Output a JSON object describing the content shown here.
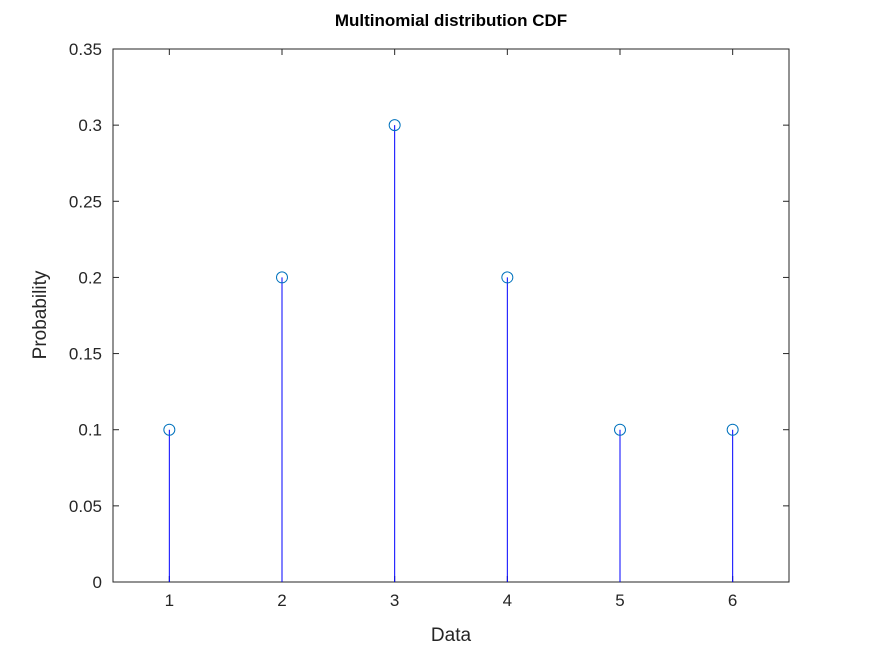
{
  "chart_data": {
    "type": "stem",
    "title": "Multinomial distribution CDF",
    "xlabel": "Data",
    "ylabel": "Probability",
    "x": [
      1,
      2,
      3,
      4,
      5,
      6
    ],
    "values": [
      0.1,
      0.2,
      0.3,
      0.2,
      0.1,
      0.1
    ],
    "xlim": [
      0.5,
      6.5
    ],
    "ylim": [
      0,
      0.35
    ],
    "xticks": [
      "1",
      "2",
      "3",
      "4",
      "5",
      "6"
    ],
    "yticks": [
      "0",
      "0.05",
      "0.1",
      "0.15",
      "0.2",
      "0.25",
      "0.3",
      "0.35"
    ],
    "grid": false,
    "stem_color": "#0000ff",
    "marker_color": "#0072bd",
    "marker": "circle"
  }
}
